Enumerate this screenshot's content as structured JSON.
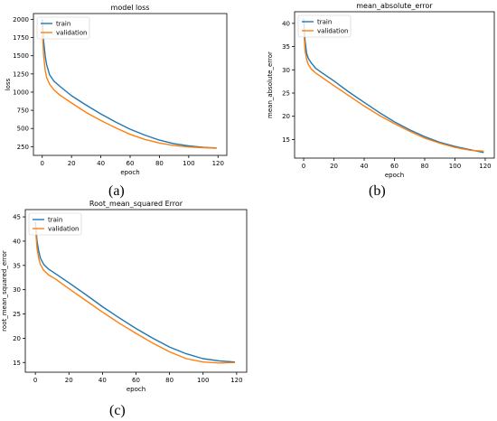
{
  "colors": {
    "train": "#1f77b4",
    "validation": "#ff7f0e"
  },
  "captions": [
    "(a)",
    "(b)",
    "(c)"
  ],
  "chart_data": [
    {
      "type": "line",
      "title": "model loss",
      "xlabel": "epoch",
      "ylabel": "loss",
      "xlim": [
        -6,
        126
      ],
      "ylim": [
        130,
        2080
      ],
      "xticks": [
        0,
        20,
        40,
        60,
        80,
        100,
        120
      ],
      "yticks": [
        250,
        500,
        750,
        1000,
        1250,
        1500,
        1750,
        2000
      ],
      "legend": "upper-left",
      "grid": false,
      "series": [
        {
          "name": "train",
          "x": [
            0,
            1,
            2,
            3,
            5,
            8,
            12,
            20,
            30,
            40,
            50,
            60,
            70,
            80,
            90,
            100,
            110,
            119
          ],
          "y": [
            2000,
            1700,
            1500,
            1380,
            1240,
            1150,
            1080,
            950,
            820,
            700,
            590,
            490,
            410,
            340,
            290,
            260,
            240,
            232
          ]
        },
        {
          "name": "validation",
          "x": [
            0,
            1,
            2,
            3,
            5,
            8,
            12,
            20,
            30,
            40,
            50,
            60,
            70,
            80,
            90,
            100,
            110,
            119
          ],
          "y": [
            1900,
            1500,
            1300,
            1200,
            1110,
            1030,
            960,
            850,
            720,
            610,
            510,
            420,
            350,
            300,
            265,
            245,
            235,
            228
          ]
        }
      ]
    },
    {
      "type": "line",
      "title": "mean_absolute_error",
      "xlabel": "epoch",
      "ylabel": "mean_absolute_error",
      "xlim": [
        -6,
        126
      ],
      "ylim": [
        11,
        42.5
      ],
      "xticks": [
        0,
        20,
        40,
        60,
        80,
        100,
        120
      ],
      "yticks": [
        15,
        20,
        25,
        30,
        35,
        40
      ],
      "legend": "upper-left",
      "grid": false,
      "series": [
        {
          "name": "train",
          "x": [
            0,
            1,
            2,
            3,
            5,
            8,
            12,
            20,
            30,
            40,
            50,
            60,
            70,
            80,
            90,
            100,
            110,
            119
          ],
          "y": [
            41,
            36,
            33.5,
            32.5,
            31.5,
            30.3,
            29.4,
            27.6,
            25.2,
            23,
            20.8,
            18.8,
            17.1,
            15.6,
            14.4,
            13.5,
            12.8,
            12.2
          ]
        },
        {
          "name": "validation",
          "x": [
            0,
            1,
            2,
            3,
            5,
            8,
            12,
            20,
            30,
            40,
            50,
            60,
            70,
            80,
            90,
            100,
            110,
            119
          ],
          "y": [
            39,
            34,
            32.2,
            31.2,
            30.2,
            29.3,
            28.4,
            26.6,
            24.4,
            22.2,
            20.2,
            18.4,
            16.8,
            15.3,
            14.2,
            13.3,
            12.7,
            12.5
          ]
        }
      ]
    },
    {
      "type": "line",
      "title": "Root_mean_squared Error",
      "xlabel": "epoch",
      "ylabel": "root_mean_squared_error",
      "xlim": [
        -6,
        126
      ],
      "ylim": [
        13,
        46.5
      ],
      "xticks": [
        0,
        20,
        40,
        60,
        80,
        100,
        120
      ],
      "yticks": [
        15,
        20,
        25,
        30,
        35,
        40,
        45
      ],
      "legend": "upper-left",
      "grid": false,
      "series": [
        {
          "name": "train",
          "x": [
            0,
            1,
            2,
            3,
            5,
            8,
            12,
            20,
            30,
            40,
            50,
            60,
            70,
            80,
            90,
            100,
            110,
            119
          ],
          "y": [
            44,
            40,
            38,
            36.5,
            35.2,
            34.2,
            33.3,
            31.4,
            29,
            26.5,
            24.2,
            22,
            20,
            18.2,
            16.8,
            15.8,
            15.3,
            15.1
          ]
        },
        {
          "name": "validation",
          "x": [
            0,
            1,
            2,
            3,
            5,
            8,
            12,
            20,
            30,
            40,
            50,
            60,
            70,
            80,
            90,
            100,
            110,
            119
          ],
          "y": [
            43,
            38.5,
            36.5,
            35.2,
            34,
            33,
            32.2,
            30.2,
            27.8,
            25.4,
            23.1,
            21,
            19,
            17.2,
            15.8,
            15.1,
            14.9,
            15
          ]
        }
      ]
    }
  ]
}
